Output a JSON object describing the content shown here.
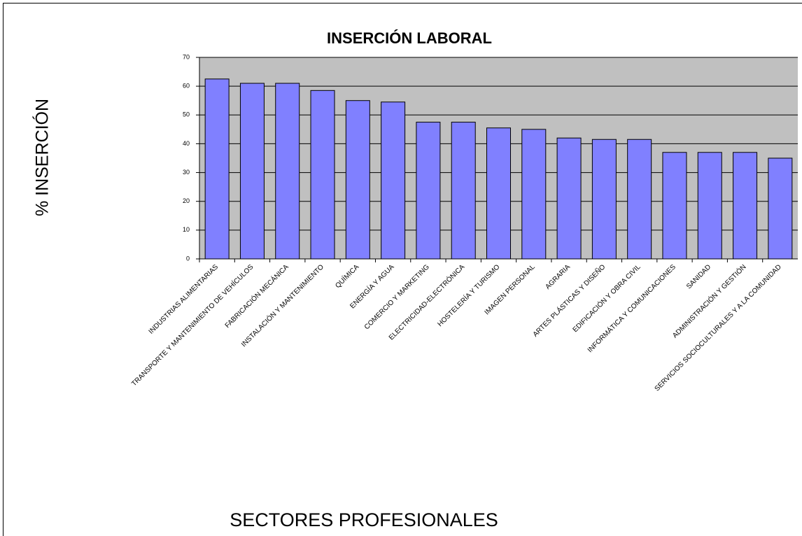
{
  "chart_data": {
    "type": "bar",
    "title": "INSERCIÓN LABORAL",
    "ylabel": "% INSERCIÓN",
    "xlabel": "SECTORES PROFESIONALES",
    "categories": [
      "INDUSTRIAS ALIMENTARIAS",
      "TRANSPORTE Y MANTENIMIENTO DE VEHÍCULOS",
      "FABRICACIÓN MECÁNICA",
      "INSTALACIÓN Y MANTENIMIENTO",
      "QUÍMICA",
      "ENERGÍA Y AGUA",
      "COMERCIO Y MARKETING",
      "ELECTRICIDAD-ELECTRÓNICA",
      "HOSTELERÍA Y TURISMO",
      "IMAGEN PERSONAL",
      "AGRARIA",
      "ARTES PLÁSTICAS Y DISEÑO",
      "EDIFICACIÓN Y OBRA CIVIL",
      "INFORMÁTICA Y COMUNICACIONES",
      "SANIDAD",
      "ADMINISTRACIÓN Y GESTIÓN",
      "SERVICIOS SOCIOCULTURALES Y A LA COMUNIDAD"
    ],
    "values": [
      62.5,
      61,
      61,
      58.5,
      55,
      54.5,
      47.5,
      47.5,
      45.5,
      45,
      42,
      41.5,
      41.5,
      37,
      37,
      37,
      35
    ],
    "color": "#8080ff",
    "ylim": [
      0,
      70
    ],
    "yticks": [
      0,
      10,
      20,
      30,
      40,
      50,
      60,
      70
    ],
    "grid": true
  }
}
